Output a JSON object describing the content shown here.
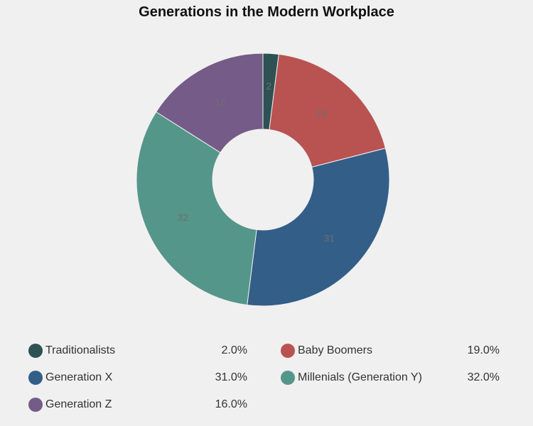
{
  "chart_data": {
    "type": "pie",
    "variant": "donut",
    "title": "Generations in the Modern Workplace",
    "categories": [
      "Traditionalists",
      "Baby Boomers",
      "Generation X",
      "Millenials (Generation Y)",
      "Generation Z"
    ],
    "values": [
      2,
      19,
      31,
      32,
      16
    ],
    "percent_labels": [
      "2.0%",
      "19.0%",
      "31.0%",
      "32.0%",
      "16.0%"
    ],
    "colors": [
      "#2e5153",
      "#b85352",
      "#335e88",
      "#55968a",
      "#745b88"
    ],
    "legend": "bottom"
  }
}
